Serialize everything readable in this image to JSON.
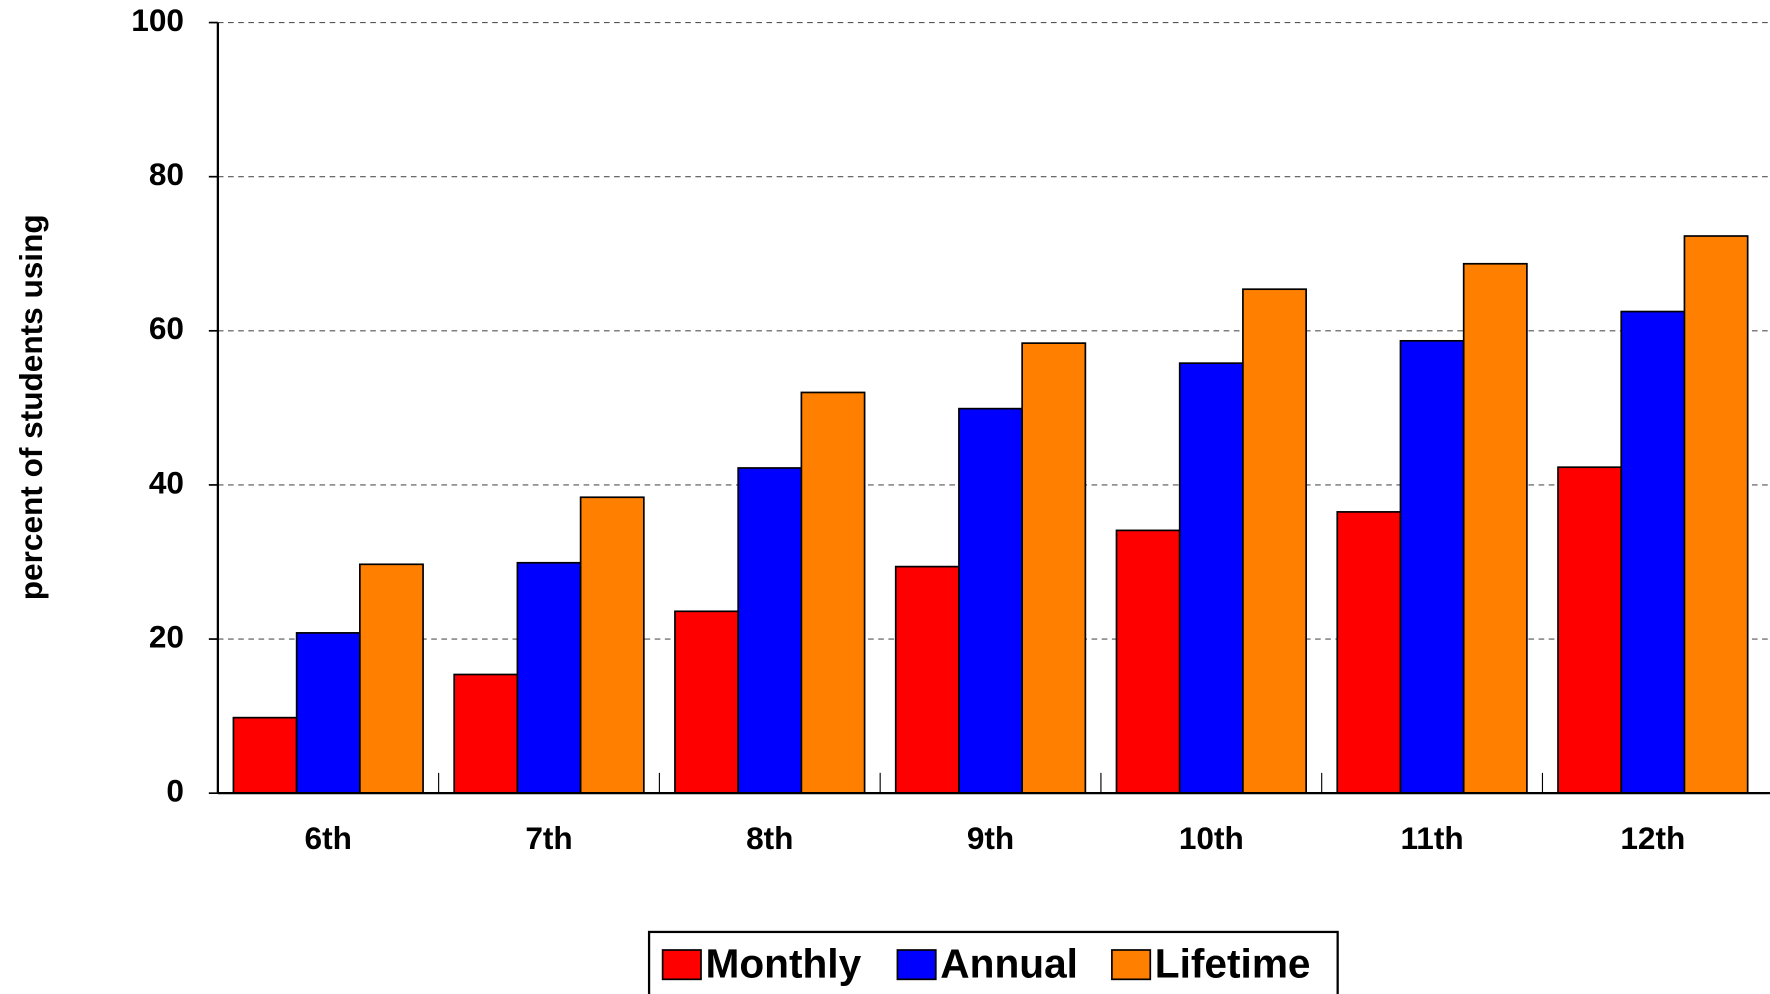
{
  "chart_data": {
    "type": "bar",
    "y_label": "percent of students using",
    "categories": [
      "6th",
      "7th",
      "8th",
      "9th",
      "10th",
      "11th",
      "12th"
    ],
    "series": [
      {
        "name": "Monthly",
        "color": "#ff0000",
        "values": [
          9.8,
          15.4,
          23.6,
          29.4,
          34.1,
          36.5,
          42.3
        ]
      },
      {
        "name": "Annual",
        "color": "#0000ff",
        "values": [
          20.8,
          29.9,
          42.2,
          49.9,
          55.8,
          58.7,
          62.5
        ]
      },
      {
        "name": "Lifetime",
        "color": "#ff8000",
        "values": [
          29.7,
          38.4,
          52.0,
          58.4,
          65.4,
          68.7,
          72.3
        ]
      }
    ],
    "ylim": [
      0,
      100
    ],
    "yticks": [
      0,
      20,
      40,
      60,
      80,
      100
    ],
    "grid": true,
    "legend": "bottom"
  }
}
